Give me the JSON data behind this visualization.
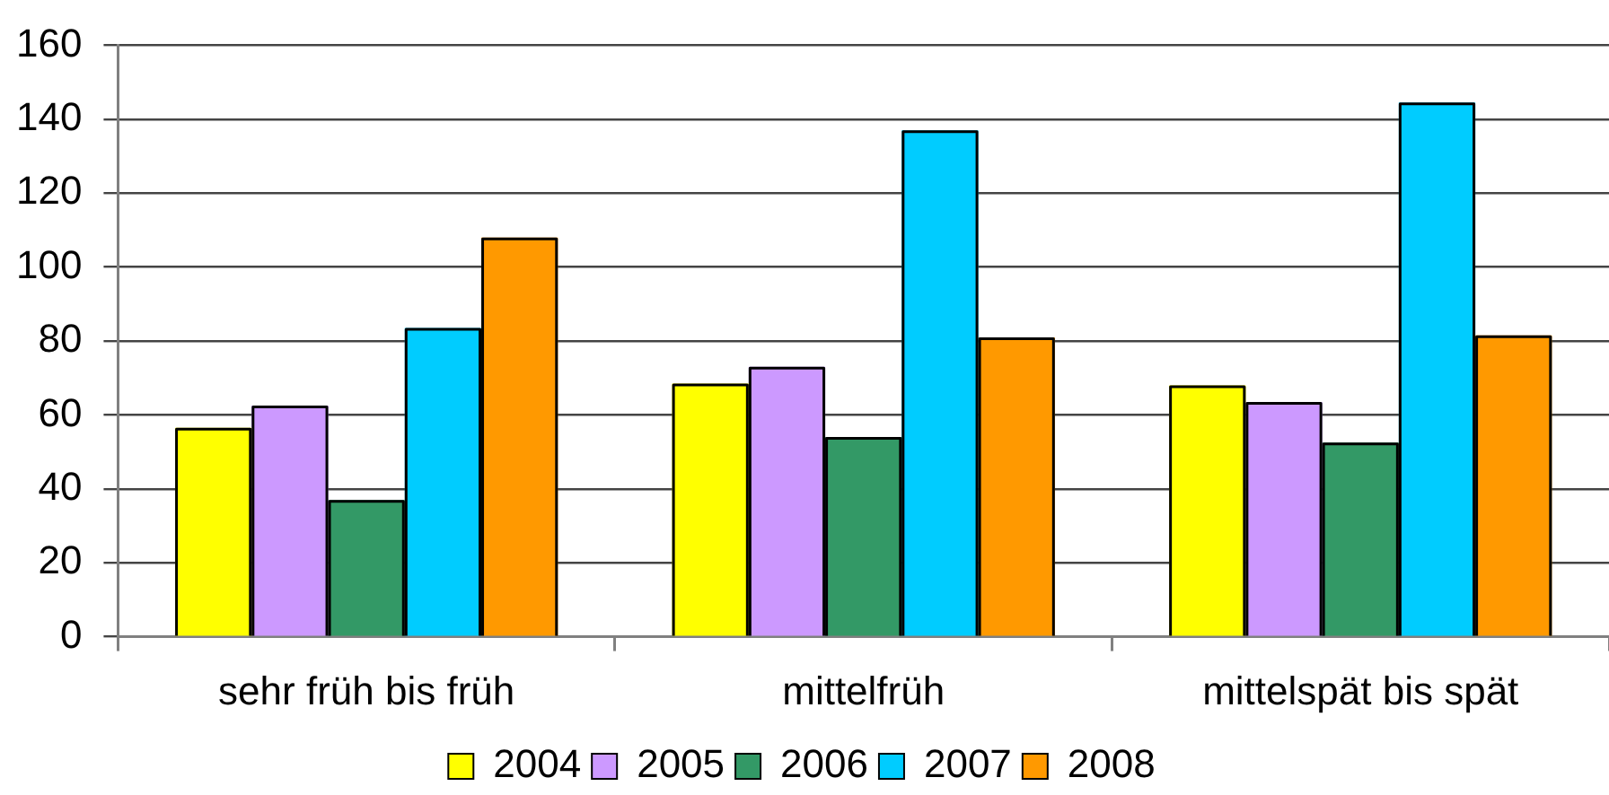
{
  "chart_data": {
    "type": "bar",
    "categories": [
      "sehr früh bis früh",
      "mittelfrüh",
      "mittelspät bis spät"
    ],
    "series": [
      {
        "name": "2004",
        "color": "#ffff00",
        "values": [
          56.5,
          68.5,
          68
        ]
      },
      {
        "name": "2005",
        "color": "#cc99ff",
        "values": [
          62.5,
          73,
          63.5
        ]
      },
      {
        "name": "2006",
        "color": "#339966",
        "values": [
          37,
          54,
          52.5
        ]
      },
      {
        "name": "2007",
        "color": "#00ccff",
        "values": [
          83.5,
          137,
          144.5
        ]
      },
      {
        "name": "2008",
        "color": "#ff9900",
        "values": [
          108,
          81,
          81.5
        ]
      }
    ],
    "ylim": [
      0,
      160
    ],
    "yticks": [
      0,
      20,
      40,
      60,
      80,
      100,
      120,
      140,
      160
    ],
    "grid": "y",
    "legend": "bottom"
  }
}
